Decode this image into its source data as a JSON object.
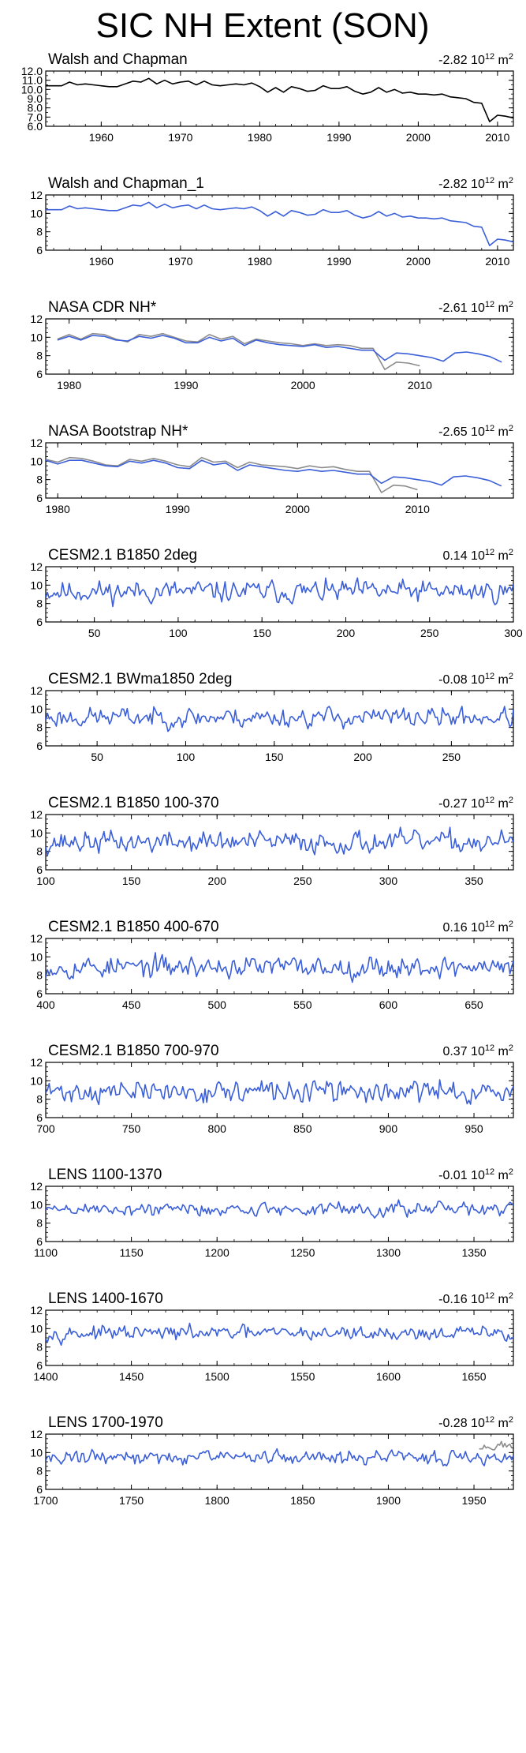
{
  "title": "SIC NH Extent (SON)",
  "colors": {
    "model": "#3b5fd9",
    "obs": "#000000",
    "ref": "#8c8c8c"
  },
  "chart_data": [
    {
      "type": "line",
      "title": "Walsh and Chapman",
      "trend": {
        "value": "-2.82",
        "unit": "10",
        "exp": "12",
        "unit2": "m",
        "exp2": "2"
      },
      "xlim": [
        1953,
        2012
      ],
      "ylim": [
        6,
        12
      ],
      "xticks": [
        1960,
        1970,
        1980,
        1990,
        2000,
        2010
      ],
      "yticks": [
        6.0,
        7.0,
        8.0,
        9.0,
        10.0,
        11.0,
        12.0
      ],
      "ytick_labels": [
        "6.0",
        "7.0",
        "8.0",
        "9.0",
        "10.0",
        "11.0",
        "12.0"
      ],
      "series": [
        {
          "style": "obs",
          "x_start": 1953,
          "x_step": 1,
          "values": [
            10.4,
            10.4,
            10.4,
            10.8,
            10.5,
            10.6,
            10.5,
            10.4,
            10.3,
            10.3,
            10.6,
            10.9,
            10.8,
            11.2,
            10.6,
            11.0,
            10.6,
            10.8,
            10.9,
            10.5,
            10.9,
            10.5,
            10.4,
            10.5,
            10.6,
            10.5,
            10.7,
            10.3,
            9.7,
            10.2,
            9.7,
            10.3,
            10.1,
            9.8,
            9.9,
            10.4,
            10.1,
            10.1,
            10.3,
            9.8,
            9.5,
            9.7,
            10.2,
            9.7,
            10.0,
            9.6,
            9.7,
            9.5,
            9.5,
            9.4,
            9.5,
            9.2,
            9.1,
            9.0,
            8.6,
            8.5,
            6.5,
            7.2,
            7.1,
            6.9
          ]
        }
      ]
    },
    {
      "type": "line",
      "title": "Walsh and Chapman_1",
      "trend": {
        "value": "-2.82",
        "unit": "10",
        "exp": "12",
        "unit2": "m",
        "exp2": "2"
      },
      "xlim": [
        1953,
        2012
      ],
      "ylim": [
        6,
        12
      ],
      "xticks": [
        1960,
        1970,
        1980,
        1990,
        2000,
        2010
      ],
      "yticks": [
        6,
        8,
        10,
        12
      ],
      "ytick_labels": [
        "6",
        "8",
        "10",
        "12"
      ],
      "series": [
        {
          "style": "model",
          "x_start": 1953,
          "x_step": 1,
          "values": [
            10.4,
            10.4,
            10.4,
            10.8,
            10.5,
            10.6,
            10.5,
            10.4,
            10.3,
            10.3,
            10.6,
            10.9,
            10.8,
            11.2,
            10.6,
            11.0,
            10.6,
            10.8,
            10.9,
            10.5,
            10.9,
            10.5,
            10.4,
            10.5,
            10.6,
            10.5,
            10.7,
            10.3,
            9.7,
            10.2,
            9.7,
            10.3,
            10.1,
            9.8,
            9.9,
            10.4,
            10.1,
            10.1,
            10.3,
            9.8,
            9.5,
            9.7,
            10.2,
            9.7,
            10.0,
            9.6,
            9.7,
            9.5,
            9.5,
            9.4,
            9.5,
            9.2,
            9.1,
            9.0,
            8.6,
            8.5,
            6.5,
            7.2,
            7.1,
            6.9
          ]
        }
      ]
    },
    {
      "type": "line",
      "title": "NASA CDR NH*",
      "trend": {
        "value": "-2.61",
        "unit": "10",
        "exp": "12",
        "unit2": "m",
        "exp2": "2"
      },
      "xlim": [
        1978,
        2018
      ],
      "ylim": [
        6,
        12
      ],
      "xticks": [
        1980,
        1990,
        2000,
        2010
      ],
      "yticks": [
        6,
        8,
        10,
        12
      ],
      "ytick_labels": [
        "6",
        "8",
        "10",
        "12"
      ],
      "series": [
        {
          "style": "ref",
          "x_start": 1979,
          "x_step": 1,
          "values": [
            9.8,
            10.3,
            9.8,
            10.4,
            10.3,
            9.8,
            9.5,
            10.3,
            10.1,
            10.4,
            10.0,
            9.6,
            9.5,
            10.3,
            9.8,
            10.1,
            9.3,
            9.8,
            9.6,
            9.4,
            9.3,
            9.1,
            9.3,
            9.1,
            9.2,
            9.1,
            8.8,
            8.8,
            6.5,
            7.3,
            7.2,
            6.9
          ]
        },
        {
          "style": "model",
          "x_start": 1979,
          "x_step": 1,
          "values": [
            9.7,
            10.1,
            9.7,
            10.2,
            10.1,
            9.7,
            9.6,
            10.1,
            9.9,
            10.2,
            9.9,
            9.4,
            9.4,
            10.0,
            9.6,
            9.9,
            9.1,
            9.7,
            9.4,
            9.2,
            9.1,
            9.0,
            9.2,
            8.9,
            9.0,
            8.8,
            8.6,
            8.6,
            7.5,
            8.3,
            8.2,
            8.0,
            7.8,
            7.4,
            8.3,
            8.4,
            8.2,
            7.9,
            7.3
          ]
        }
      ]
    },
    {
      "type": "line",
      "title": "NASA Bootstrap NH*",
      "trend": {
        "value": "-2.65",
        "unit": "10",
        "exp": "12",
        "unit2": "m",
        "exp2": "2"
      },
      "xlim": [
        1979,
        2018
      ],
      "ylim": [
        6,
        12
      ],
      "xticks": [
        1980,
        1990,
        2000,
        2010
      ],
      "yticks": [
        6,
        8,
        10,
        12
      ],
      "ytick_labels": [
        "6",
        "8",
        "10",
        "12"
      ],
      "series": [
        {
          "style": "ref",
          "x_start": 1979,
          "x_step": 1,
          "values": [
            10.2,
            9.9,
            10.4,
            10.3,
            10.0,
            9.6,
            9.5,
            10.2,
            10.0,
            10.3,
            10.0,
            9.6,
            9.4,
            10.4,
            9.9,
            10.0,
            9.3,
            9.9,
            9.6,
            9.5,
            9.4,
            9.2,
            9.5,
            9.3,
            9.4,
            9.1,
            8.9,
            8.9,
            6.6,
            7.4,
            7.3,
            6.9
          ]
        },
        {
          "style": "model",
          "x_start": 1979,
          "x_step": 1,
          "values": [
            10.1,
            9.7,
            10.1,
            10.1,
            9.8,
            9.5,
            9.4,
            10.0,
            9.8,
            10.1,
            9.8,
            9.3,
            9.2,
            10.1,
            9.6,
            9.8,
            9.0,
            9.6,
            9.4,
            9.2,
            9.0,
            8.9,
            9.1,
            8.9,
            9.0,
            8.8,
            8.6,
            8.6,
            7.6,
            8.3,
            8.2,
            8.0,
            7.8,
            7.4,
            8.3,
            8.4,
            8.2,
            7.9,
            7.3
          ]
        }
      ]
    },
    {
      "type": "line",
      "title": "CESM2.1 B1850 2deg",
      "trend": {
        "value": "0.14",
        "unit": "10",
        "exp": "12",
        "unit2": "m",
        "exp2": "2"
      },
      "xlim": [
        21,
        300
      ],
      "ylim": [
        6,
        12
      ],
      "xticks": [
        50,
        100,
        150,
        200,
        250,
        300
      ],
      "yticks": [
        6,
        8,
        10,
        12
      ],
      "ytick_labels": [
        "6",
        "8",
        "10",
        "12"
      ],
      "series": [
        {
          "style": "model",
          "x_start": 21,
          "x_step": 1,
          "gen": {
            "seed": 11,
            "mean": 9.3,
            "amp": 0.55,
            "n": 280,
            "spike": []
          }
        }
      ]
    },
    {
      "type": "line",
      "title": "CESM2.1 BWma1850 2deg",
      "trend": {
        "value": "-0.08",
        "unit": "10",
        "exp": "12",
        "unit2": "m",
        "exp2": "2"
      },
      "xlim": [
        21,
        285
      ],
      "ylim": [
        6,
        12
      ],
      "xticks": [
        50,
        100,
        150,
        200,
        250
      ],
      "yticks": [
        6,
        8,
        10,
        12
      ],
      "ytick_labels": [
        "6",
        "8",
        "10",
        "12"
      ],
      "series": [
        {
          "style": "model",
          "x_start": 21,
          "x_step": 1,
          "gen": {
            "seed": 23,
            "mean": 9.1,
            "amp": 0.5,
            "n": 265,
            "spike": []
          }
        }
      ]
    },
    {
      "type": "line",
      "title": "CESM2.1 B1850 100-370",
      "trend": {
        "value": "-0.27",
        "unit": "10",
        "exp": "12",
        "unit2": "m",
        "exp2": "2"
      },
      "xlim": [
        100,
        373
      ],
      "ylim": [
        6,
        12
      ],
      "xticks": [
        100,
        150,
        200,
        250,
        300,
        350
      ],
      "yticks": [
        6,
        8,
        10,
        12
      ],
      "ytick_labels": [
        "6",
        "8",
        "10",
        "12"
      ],
      "series": [
        {
          "style": "model",
          "x_start": 100,
          "x_step": 1,
          "gen": {
            "seed": 37,
            "mean": 9.0,
            "amp": 0.55,
            "n": 274,
            "spike": []
          }
        }
      ]
    },
    {
      "type": "line",
      "title": "CESM2.1 B1850 400-670",
      "trend": {
        "value": "0.16",
        "unit": "10",
        "exp": "12",
        "unit2": "m",
        "exp2": "2"
      },
      "xlim": [
        400,
        673
      ],
      "ylim": [
        6,
        12
      ],
      "xticks": [
        400,
        450,
        500,
        550,
        600,
        650
      ],
      "yticks": [
        6,
        8,
        10,
        12
      ],
      "ytick_labels": [
        "6",
        "8",
        "10",
        "12"
      ],
      "series": [
        {
          "style": "model",
          "x_start": 400,
          "x_step": 1,
          "gen": {
            "seed": 53,
            "mean": 8.9,
            "amp": 0.55,
            "n": 274,
            "spike": []
          }
        }
      ]
    },
    {
      "type": "line",
      "title": "CESM2.1 B1850 700-970",
      "trend": {
        "value": "0.37",
        "unit": "10",
        "exp": "12",
        "unit2": "m",
        "exp2": "2"
      },
      "xlim": [
        700,
        973
      ],
      "ylim": [
        6,
        12
      ],
      "xticks": [
        700,
        750,
        800,
        850,
        900,
        950
      ],
      "yticks": [
        6,
        8,
        10,
        12
      ],
      "ytick_labels": [
        "6",
        "8",
        "10",
        "12"
      ],
      "series": [
        {
          "style": "model",
          "x_start": 700,
          "x_step": 1,
          "gen": {
            "seed": 71,
            "mean": 8.8,
            "amp": 0.55,
            "n": 274,
            "spike": []
          }
        }
      ]
    },
    {
      "type": "line",
      "title": "LENS 1100-1370",
      "trend": {
        "value": "-0.01",
        "unit": "10",
        "exp": "12",
        "unit2": "m",
        "exp2": "2"
      },
      "xlim": [
        1100,
        1373
      ],
      "ylim": [
        6,
        12
      ],
      "xticks": [
        1100,
        1150,
        1200,
        1250,
        1300,
        1350
      ],
      "yticks": [
        6,
        8,
        10,
        12
      ],
      "ytick_labels": [
        "6",
        "8",
        "10",
        "12"
      ],
      "series": [
        {
          "style": "model",
          "x_start": 1100,
          "x_step": 1,
          "gen": {
            "seed": 89,
            "mean": 9.5,
            "amp": 0.35,
            "n": 274,
            "spike": []
          }
        }
      ]
    },
    {
      "type": "line",
      "title": "LENS 1400-1670",
      "trend": {
        "value": "-0.16",
        "unit": "10",
        "exp": "12",
        "unit2": "m",
        "exp2": "2"
      },
      "xlim": [
        1400,
        1673
      ],
      "ylim": [
        6,
        12
      ],
      "xticks": [
        1400,
        1450,
        1500,
        1550,
        1600,
        1650
      ],
      "yticks": [
        6,
        8,
        10,
        12
      ],
      "ytick_labels": [
        "6",
        "8",
        "10",
        "12"
      ],
      "series": [
        {
          "style": "model",
          "x_start": 1400,
          "x_step": 1,
          "gen": {
            "seed": 97,
            "mean": 9.5,
            "amp": 0.35,
            "n": 274,
            "spike": []
          }
        }
      ]
    },
    {
      "type": "line",
      "title": "LENS 1700-1970",
      "trend": {
        "value": "-0.28",
        "unit": "10",
        "exp": "12",
        "unit2": "m",
        "exp2": "2"
      },
      "xlim": [
        1700,
        1973
      ],
      "ylim": [
        6,
        12
      ],
      "xticks": [
        1700,
        1750,
        1800,
        1850,
        1900,
        1950
      ],
      "yticks": [
        6,
        8,
        10,
        12
      ],
      "ytick_labels": [
        "6",
        "8",
        "10",
        "12"
      ],
      "series": [
        {
          "style": "model",
          "x_start": 1700,
          "x_step": 1,
          "gen": {
            "seed": 131,
            "mean": 9.5,
            "amp": 0.35,
            "n": 274,
            "spike": []
          }
        },
        {
          "style": "ref",
          "x_start": 1953,
          "x_step": 1,
          "values": [
            10.4,
            10.4,
            10.4,
            10.8,
            10.5,
            10.6,
            10.5,
            10.4,
            10.3,
            10.3,
            10.6,
            10.9,
            10.8,
            11.2,
            10.6,
            11.0,
            10.6,
            10.8,
            10.9,
            10.5
          ]
        }
      ]
    }
  ]
}
